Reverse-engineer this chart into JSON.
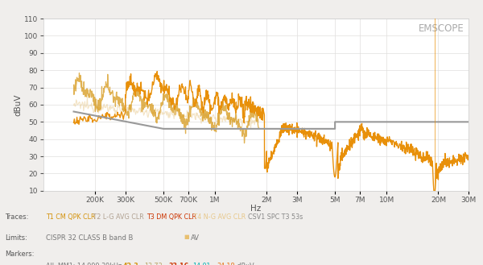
{
  "title": "EMSCOPE",
  "xlabel": "Hz",
  "ylabel": "dBuV",
  "ylim": [
    10,
    110
  ],
  "yticks": [
    10,
    20,
    30,
    40,
    50,
    60,
    70,
    80,
    90,
    100,
    110
  ],
  "xlog_ticks": [
    200000,
    300000,
    500000,
    700000,
    1000000,
    2000000,
    3000000,
    5000000,
    7000000,
    10000000,
    20000000,
    30000000
  ],
  "xlog_labels": [
    "200K",
    "300K",
    "500K",
    "700K",
    "1M",
    "2M",
    "3M",
    "5M",
    "7M",
    "10M",
    "20M",
    "30M"
  ],
  "xlim": [
    100000,
    30000000
  ],
  "bg_color": "#f0eeec",
  "plot_bg": "#ffffff",
  "grid_color": "#e0dedd",
  "color_T1": "#d4920a",
  "color_T2": "#e8c88a",
  "color_T3_bold": "#e8900a",
  "color_T4": "#e8c88a",
  "color_limit_gray": "#999999",
  "color_limit_orange": "#e8c070",
  "marker_color_1": "#d4920a",
  "marker_color_2": "#b8a060",
  "marker_color_3": "#cc3300",
  "marker_color_4": "#00b0b0",
  "marker_color_5": "#e87010"
}
